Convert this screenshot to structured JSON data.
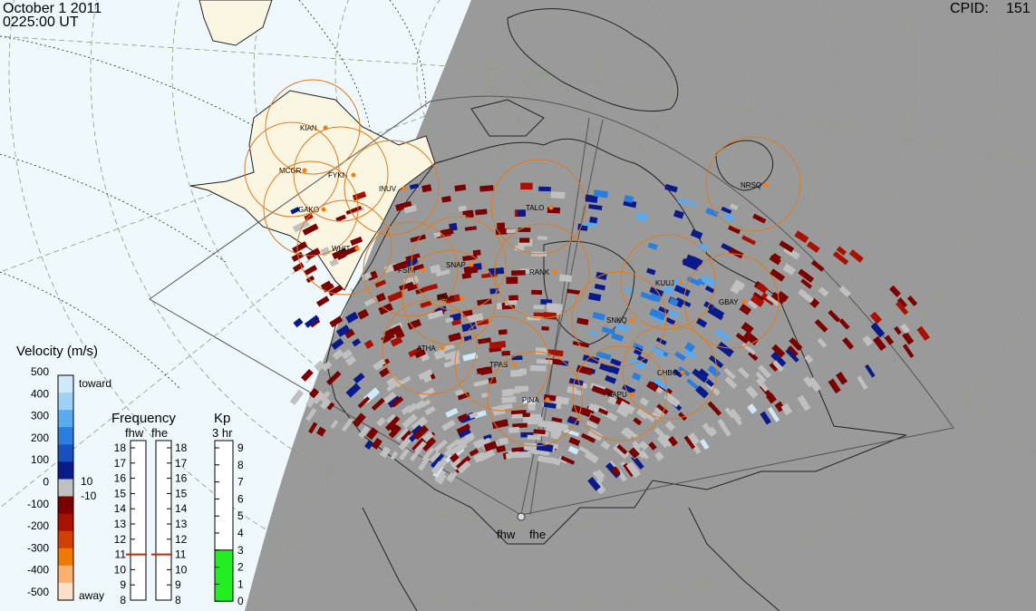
{
  "header": {
    "date": "October  1 2011",
    "time": "0225:00 UT",
    "cpid_label": "CPID:",
    "cpid_value": "151"
  },
  "stations": [
    {
      "code": "KIAN"
    },
    {
      "code": "MCGR"
    },
    {
      "code": "FYKN"
    },
    {
      "code": "GAKO"
    },
    {
      "code": "INUV"
    },
    {
      "code": "WHIT"
    },
    {
      "code": "TALO"
    },
    {
      "code": "NRSQ"
    },
    {
      "code": "FSIM"
    },
    {
      "code": "SNAP"
    },
    {
      "code": "RANK"
    },
    {
      "code": "FSMI"
    },
    {
      "code": "KUUJ"
    },
    {
      "code": "GBAY"
    },
    {
      "code": "SNKQ"
    },
    {
      "code": "ATHA"
    },
    {
      "code": "TPAS"
    },
    {
      "code": "CHBG"
    },
    {
      "code": "PINA"
    },
    {
      "code": "KAPU"
    }
  ],
  "radars": [
    "fhw",
    "fhe"
  ],
  "velocity_scale": {
    "title": "Velocity (m/s)",
    "ticks": [
      "500",
      "400",
      "300",
      "200",
      "100",
      "0",
      "-100",
      "-200",
      "-300",
      "-400",
      "-500"
    ],
    "toward_label": "toward",
    "away_label": "away",
    "threshold_pos": "10",
    "threshold_neg": "-10",
    "colors": [
      "#cfe8fa",
      "#9fd0f5",
      "#5aaaf0",
      "#2a7ee0",
      "#1a4fbf",
      "#0a1a8a",
      "#c0c0c0",
      "#7a0000",
      "#a81000",
      "#d24000",
      "#f07a00",
      "#fcb070",
      "#fde0c8"
    ]
  },
  "frequency": {
    "title": "Frequency",
    "col1": "fhw",
    "col2": "fhe",
    "ticks": [
      "18",
      "17",
      "16",
      "15",
      "14",
      "13",
      "12",
      "11",
      "10",
      "9",
      "8"
    ],
    "fhw_value_mhz": 11,
    "fhe_value_mhz": 11
  },
  "kp": {
    "title": "Kp",
    "subtitle": "3 hr",
    "ticks": [
      "9",
      "8",
      "7",
      "6",
      "5",
      "4",
      "3",
      "2",
      "1",
      "0"
    ],
    "value": 3,
    "fill_color": "#22ee22"
  }
}
